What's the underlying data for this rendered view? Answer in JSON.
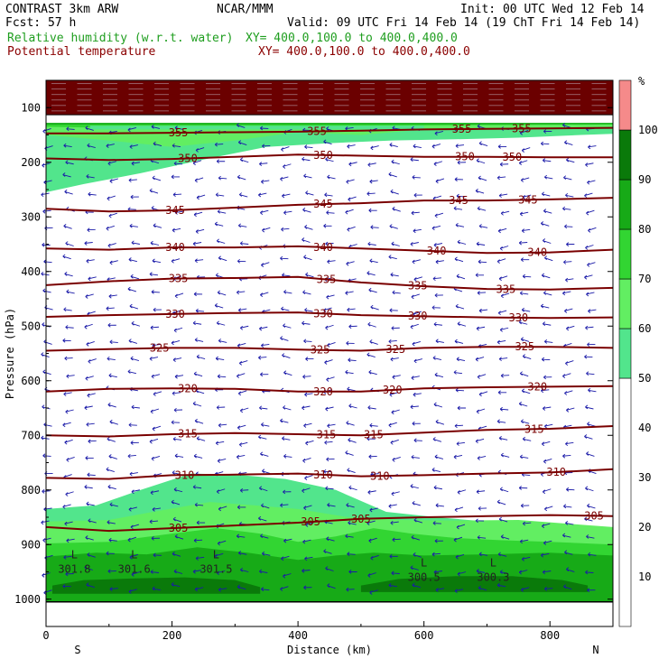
{
  "header": {
    "model": "CONTRAST  3km ARW",
    "org": "NCAR/MMM",
    "init": "Init: 00 UTC Wed 12 Feb 14",
    "fcst": "Fcst:    57 h",
    "valid": "Valid: 09 UTC Fri 14 Feb 14 (19 ChT Fri 14 Feb 14)",
    "field1": "Relative humidity (w.r.t. water)",
    "field1_xy": "XY= 400.0,100.0 to 400.0,400.0",
    "field2": "Potential temperature",
    "field2_xy": "XY= 400.0,100.0 to 400.0,400.0",
    "colors": {
      "field1": "#1f9e1f",
      "field2": "#8b0000"
    }
  },
  "chart_data": {
    "type": "heatmap",
    "subtype": "vertical cross-section with contours and wind vectors",
    "xlabel": "Distance (km)",
    "ylabel": "Pressure (hPa)",
    "xlim": [
      0,
      900
    ],
    "ylim": [
      1050,
      50
    ],
    "xticks": [
      "0",
      "200",
      "400",
      "600",
      "800"
    ],
    "yticks": [
      "100",
      "200",
      "300",
      "400",
      "500",
      "600",
      "700",
      "800",
      "900",
      "1000"
    ],
    "x_end_labels": {
      "left": "S",
      "right": "N"
    },
    "colorbar": {
      "unit": "%",
      "ticks": [
        "10",
        "20",
        "30",
        "40",
        "50",
        "60",
        "70",
        "80",
        "90",
        "100"
      ],
      "bands": [
        {
          "from": 0,
          "to": 50,
          "color": "#ffffff"
        },
        {
          "from": 50,
          "to": 60,
          "color": "#52e58c"
        },
        {
          "from": 60,
          "to": 70,
          "color": "#62ee62"
        },
        {
          "from": 70,
          "to": 80,
          "color": "#32d532"
        },
        {
          "from": 80,
          "to": 90,
          "color": "#17aa17"
        },
        {
          "from": 90,
          "to": 100,
          "color": "#0a7a0a"
        },
        {
          "from": 100,
          "to": 110,
          "color": "#f58a8a"
        }
      ]
    },
    "theta_contours": [
      {
        "level": 355,
        "labels_at_km": [
          210,
          430,
          660,
          755
        ],
        "points": [
          [
            0,
            147
          ],
          [
            100,
            147
          ],
          [
            200,
            146
          ],
          [
            300,
            145
          ],
          [
            400,
            144
          ],
          [
            500,
            142
          ],
          [
            600,
            140
          ],
          [
            700,
            139
          ],
          [
            800,
            138
          ],
          [
            900,
            137
          ]
        ]
      },
      {
        "level": 350,
        "labels_at_km": [
          225,
          440,
          665,
          740
        ],
        "points": [
          [
            0,
            193
          ],
          [
            100,
            196
          ],
          [
            200,
            194
          ],
          [
            300,
            190
          ],
          [
            400,
            186
          ],
          [
            500,
            188
          ],
          [
            600,
            190
          ],
          [
            700,
            190
          ],
          [
            800,
            191
          ],
          [
            900,
            191
          ]
        ]
      },
      {
        "level": 345,
        "labels_at_km": [
          205,
          440,
          655,
          765
        ],
        "points": [
          [
            0,
            285
          ],
          [
            100,
            290
          ],
          [
            200,
            288
          ],
          [
            300,
            283
          ],
          [
            400,
            278
          ],
          [
            500,
            275
          ],
          [
            600,
            270
          ],
          [
            700,
            270
          ],
          [
            800,
            268
          ],
          [
            900,
            265
          ]
        ]
      },
      {
        "level": 340,
        "labels_at_km": [
          205,
          440,
          620,
          780
        ],
        "points": [
          [
            0,
            358
          ],
          [
            100,
            360
          ],
          [
            200,
            356
          ],
          [
            300,
            356
          ],
          [
            400,
            354
          ],
          [
            500,
            358
          ],
          [
            600,
            362
          ],
          [
            700,
            366
          ],
          [
            800,
            365
          ],
          [
            900,
            360
          ]
        ]
      },
      {
        "level": 335,
        "labels_at_km": [
          210,
          445,
          590,
          730
        ],
        "points": [
          [
            0,
            425
          ],
          [
            100,
            418
          ],
          [
            200,
            413
          ],
          [
            300,
            412
          ],
          [
            400,
            410
          ],
          [
            500,
            420
          ],
          [
            600,
            427
          ],
          [
            700,
            432
          ],
          [
            800,
            433
          ],
          [
            900,
            430
          ]
        ]
      },
      {
        "level": 330,
        "labels_at_km": [
          205,
          440,
          590,
          750
        ],
        "points": [
          [
            0,
            483
          ],
          [
            100,
            480
          ],
          [
            200,
            478
          ],
          [
            300,
            476
          ],
          [
            400,
            475
          ],
          [
            500,
            480
          ],
          [
            600,
            482
          ],
          [
            700,
            484
          ],
          [
            800,
            485
          ],
          [
            900,
            484
          ]
        ]
      },
      {
        "level": 325,
        "labels_at_km": [
          180,
          435,
          555,
          760
        ],
        "points": [
          [
            0,
            545
          ],
          [
            100,
            542
          ],
          [
            200,
            540
          ],
          [
            300,
            540
          ],
          [
            400,
            543
          ],
          [
            500,
            545
          ],
          [
            600,
            540
          ],
          [
            700,
            538
          ],
          [
            800,
            538
          ],
          [
            900,
            540
          ]
        ]
      },
      {
        "level": 320,
        "labels_at_km": [
          225,
          440,
          550,
          780
        ],
        "points": [
          [
            0,
            620
          ],
          [
            100,
            615
          ],
          [
            200,
            614
          ],
          [
            300,
            615
          ],
          [
            400,
            620
          ],
          [
            500,
            620
          ],
          [
            600,
            614
          ],
          [
            700,
            612
          ],
          [
            800,
            611
          ],
          [
            900,
            610
          ]
        ]
      },
      {
        "level": 315,
        "labels_at_km": [
          225,
          445,
          520,
          775
        ],
        "points": [
          [
            0,
            700
          ],
          [
            100,
            702
          ],
          [
            200,
            698
          ],
          [
            300,
            696
          ],
          [
            400,
            698
          ],
          [
            500,
            700
          ],
          [
            600,
            695
          ],
          [
            700,
            690
          ],
          [
            800,
            688
          ],
          [
            900,
            683
          ]
        ]
      },
      {
        "level": 310,
        "labels_at_km": [
          220,
          440,
          530,
          810
        ],
        "points": [
          [
            0,
            778
          ],
          [
            100,
            780
          ],
          [
            200,
            773
          ],
          [
            300,
            772
          ],
          [
            400,
            770
          ],
          [
            500,
            775
          ],
          [
            600,
            773
          ],
          [
            700,
            770
          ],
          [
            800,
            768
          ],
          [
            900,
            762
          ]
        ]
      },
      {
        "level": 305,
        "labels_at_km": [
          210,
          420,
          500,
          870
        ],
        "points": [
          [
            0,
            868
          ],
          [
            100,
            875
          ],
          [
            200,
            870
          ],
          [
            300,
            865
          ],
          [
            400,
            860
          ],
          [
            500,
            853
          ],
          [
            600,
            850
          ],
          [
            700,
            848
          ],
          [
            800,
            846
          ],
          [
            900,
            848
          ]
        ]
      }
    ],
    "low_markers": [
      {
        "label": "L",
        "value": "301.8",
        "x_km": 45,
        "p": 945
      },
      {
        "label": "L",
        "value": "301.6",
        "x_km": 140,
        "p": 945
      },
      {
        "label": "L",
        "value": "301.5",
        "x_km": 270,
        "p": 945
      },
      {
        "label": "L",
        "value": "300.5",
        "x_km": 600,
        "p": 960
      },
      {
        "label": "L",
        "value": "300.3",
        "x_km": 710,
        "p": 960
      }
    ]
  }
}
